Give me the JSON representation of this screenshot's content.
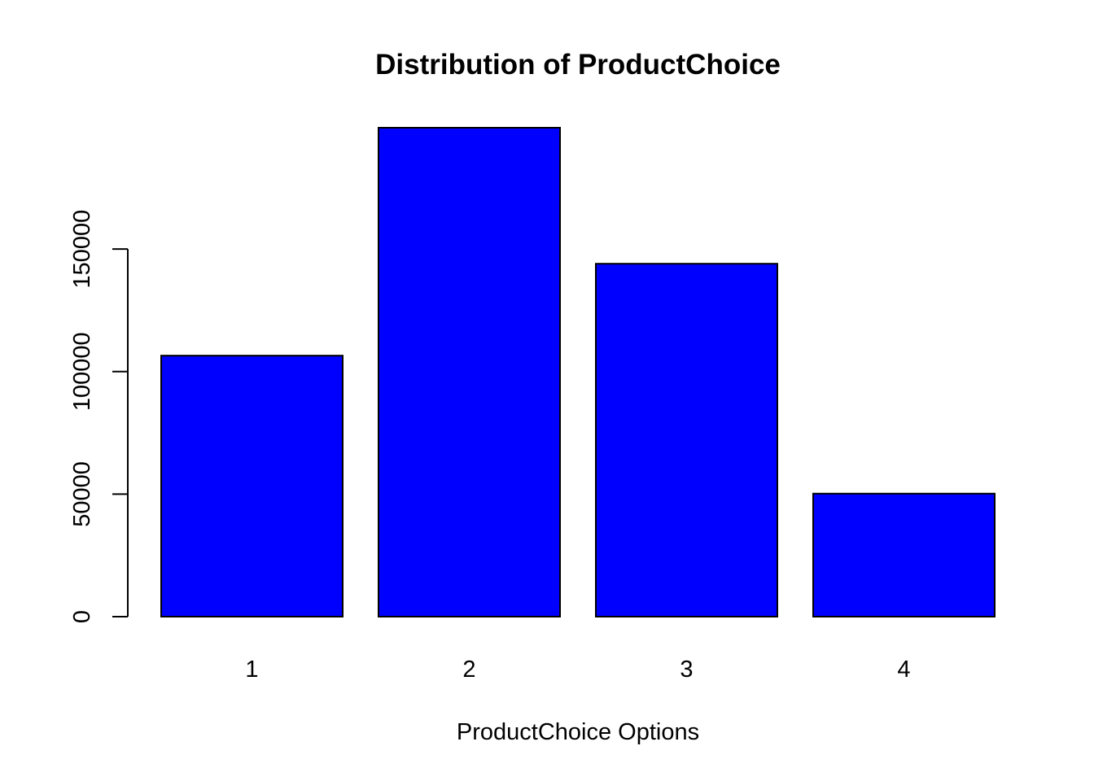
{
  "chart_data": {
    "type": "bar",
    "title": "Distribution of ProductChoice",
    "xlabel": "ProductChoice Options",
    "ylabel": "",
    "categories": [
      "1",
      "2",
      "3",
      "4"
    ],
    "values": [
      106500,
      199500,
      144000,
      50200
    ],
    "ylim": [
      0,
      199500
    ],
    "yticks": [
      0,
      50000,
      100000,
      150000
    ],
    "ytick_labels": [
      "0",
      "50000",
      "100000",
      "150000"
    ],
    "bar_color": "#0000ff",
    "grid": false,
    "legend": "none"
  }
}
